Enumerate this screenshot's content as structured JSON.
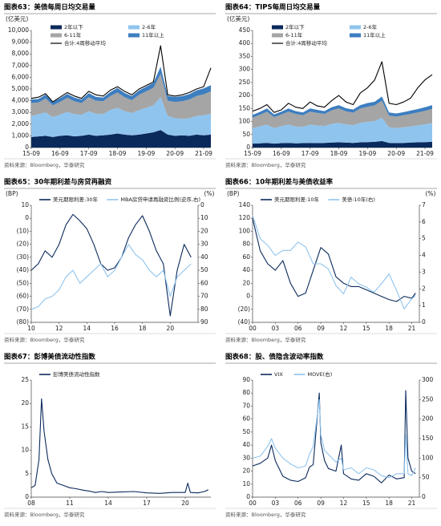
{
  "chart_data": [
    {
      "type": "stacked_area",
      "title": "图表63：美债每周日均交易量",
      "ylabel": "(亿美元)",
      "source": "资料来源：Bloomberg，华泰研究",
      "legend": "upper right",
      "categories": [
        "15-09",
        null,
        null,
        null,
        "16-09",
        null,
        null,
        null,
        "17-09",
        null,
        null,
        null,
        "18-09",
        null,
        null,
        null,
        "19-09",
        null,
        null,
        null,
        "20-09",
        null,
        null,
        null,
        "21-09",
        null
      ],
      "ylim": [
        0,
        10000
      ],
      "yticks": [
        0,
        {
          "value": 1000,
          "label": "1,000"
        },
        {
          "value": 2000,
          "label": "2,000"
        },
        {
          "value": 3000,
          "label": "3,000"
        },
        {
          "value": 4000,
          "label": "4,000"
        },
        {
          "value": 5000,
          "label": "5,000"
        },
        {
          "value": 6000,
          "label": "6,000"
        },
        {
          "value": 7000,
          "label": "7,000"
        },
        {
          "value": 8000,
          "label": "8,000"
        },
        {
          "value": 9000,
          "label": "9,000"
        },
        {
          "value": 10000,
          "label": "10,000"
        }
      ],
      "series": [
        {
          "name": "2年以下",
          "type": "area",
          "color": "#0b2a5c",
          "values": [
            900,
            950,
            1000,
            900,
            1000,
            1050,
            950,
            1000,
            1100,
            1000,
            1050,
            1100,
            1200,
            1100,
            1050,
            1100,
            1200,
            1300,
            1500,
            1100,
            1000,
            1050,
            1000,
            1100,
            1050,
            1100
          ]
        },
        {
          "name": "2-6年",
          "type": "area",
          "color": "#8fc4ee",
          "values": [
            1800,
            1900,
            2000,
            1700,
            1800,
            2000,
            1900,
            1800,
            2000,
            1900,
            1800,
            2100,
            2200,
            2000,
            1900,
            2100,
            2200,
            2300,
            2800,
            1600,
            1500,
            1400,
            1500,
            1600,
            1700,
            1800
          ]
        },
        {
          "name": "6-11年",
          "type": "area",
          "color": "#a5a5a5",
          "values": [
            1100,
            1000,
            1200,
            1000,
            1100,
            1200,
            1100,
            1000,
            1200,
            1100,
            1100,
            1200,
            1300,
            1200,
            1100,
            1300,
            1400,
            1500,
            2000,
            1300,
            1400,
            1500,
            1600,
            1700,
            1800,
            1900
          ]
        },
        {
          "name": "11年以上",
          "type": "area",
          "color": "#3d7ec0",
          "values": [
            300,
            300,
            320,
            300,
            310,
            330,
            320,
            300,
            340,
            330,
            320,
            350,
            380,
            360,
            340,
            380,
            400,
            420,
            600,
            400,
            420,
            440,
            460,
            480,
            500,
            520
          ]
        },
        {
          "name": "合计:4周移动平均",
          "type": "line",
          "color": "#000000",
          "values": [
            4200,
            4300,
            4600,
            3900,
            4300,
            4700,
            4400,
            4200,
            4800,
            4500,
            4400,
            4900,
            5200,
            4800,
            4500,
            5000,
            5300,
            5600,
            8700,
            4500,
            4400,
            4500,
            4700,
            5000,
            5200,
            6800
          ]
        }
      ]
    },
    {
      "type": "stacked_area",
      "title": "图表64：TIPS每周日均交易量",
      "ylabel": "(亿美元)",
      "source": "资料来源：Bloomberg，华泰研究",
      "legend": "upper right",
      "categories": [
        "15-09",
        null,
        null,
        null,
        "16-09",
        null,
        null,
        null,
        "17-09",
        null,
        null,
        null,
        "18-09",
        null,
        null,
        null,
        "19-09",
        null,
        null,
        null,
        "20-09",
        null,
        null,
        null,
        "21-09",
        null
      ],
      "ylim": [
        0,
        450
      ],
      "yticks": [
        0,
        50,
        100,
        150,
        200,
        250,
        300,
        350,
        400,
        450
      ],
      "series": [
        {
          "name": "2年以下",
          "type": "area",
          "color": "#0b2a5c",
          "values": [
            15,
            16,
            18,
            15,
            17,
            18,
            16,
            17,
            18,
            17,
            18,
            19,
            20,
            19,
            18,
            20,
            21,
            22,
            25,
            18,
            17,
            18,
            19,
            20,
            21,
            22
          ]
        },
        {
          "name": "2-6年",
          "type": "area",
          "color": "#8fc4ee",
          "values": [
            60,
            65,
            70,
            60,
            65,
            70,
            65,
            62,
            70,
            68,
            65,
            72,
            75,
            70,
            68,
            75,
            78,
            80,
            90,
            60,
            58,
            60,
            62,
            65,
            68,
            72
          ]
        },
        {
          "name": "6-11年",
          "type": "area",
          "color": "#a5a5a5",
          "values": [
            40,
            45,
            50,
            42,
            45,
            50,
            48,
            45,
            50,
            48,
            46,
            52,
            55,
            50,
            48,
            55,
            58,
            60,
            65,
            45,
            44,
            46,
            48,
            50,
            52,
            55
          ]
        },
        {
          "name": "11年以上",
          "type": "area",
          "color": "#3d7ec0",
          "values": [
            10,
            11,
            12,
            10,
            11,
            12,
            11,
            11,
            12,
            12,
            11,
            12,
            13,
            12,
            12,
            13,
            14,
            14,
            16,
            12,
            12,
            12,
            13,
            13,
            14,
            14
          ]
        },
        {
          "name": "合计:4周移动平均",
          "type": "line",
          "color": "#000000",
          "values": [
            140,
            150,
            165,
            135,
            145,
            170,
            155,
            150,
            175,
            160,
            155,
            180,
            200,
            175,
            165,
            210,
            230,
            260,
            330,
            170,
            165,
            175,
            190,
            230,
            260,
            280
          ]
        }
      ]
    },
    {
      "type": "line",
      "title": "图表65：30年期利差与房贷再融资",
      "ylabel": "(BP)",
      "y2label": "(%)",
      "source": "资料来源：Bloomberg，华泰研究",
      "legend": "top",
      "x": [
        10,
        10.5,
        11,
        11.5,
        12,
        12.5,
        13,
        13.5,
        14,
        14.5,
        15,
        15.5,
        16,
        16.5,
        17,
        17.5,
        18,
        18.5,
        19,
        19.5,
        20,
        20.5,
        21,
        21.5
      ],
      "xlim": [
        10,
        22
      ],
      "xticks": [
        10,
        12,
        14,
        16,
        18,
        20
      ],
      "ylim": [
        -80,
        10
      ],
      "yticks": [
        {
          "value": -80,
          "label": "(80)"
        },
        {
          "value": -70,
          "label": "(70)"
        },
        {
          "value": -60,
          "label": "(60)"
        },
        {
          "value": -50,
          "label": "(50)"
        },
        {
          "value": -40,
          "label": "(40)"
        },
        {
          "value": -30,
          "label": "(30)"
        },
        {
          "value": -20,
          "label": "(20)"
        },
        {
          "value": -10,
          "label": "(10)"
        },
        0,
        10
      ],
      "y2lim": [
        90,
        0
      ],
      "y2ticks": [
        0,
        10,
        20,
        30,
        40,
        50,
        60,
        70,
        80,
        90
      ],
      "series": [
        {
          "name": "美元期限利差:30年",
          "color": "#0b2a5c",
          "values": [
            -40,
            -35,
            -25,
            -30,
            -20,
            -5,
            3,
            -2,
            -8,
            -20,
            -35,
            -40,
            -38,
            -30,
            -15,
            -5,
            2,
            -10,
            -25,
            -35,
            -75,
            -40,
            -20,
            -30
          ]
        },
        {
          "name": "MBA房贷申请再融资比例(逆序,右)",
          "color": "#8fc4ee",
          "axis": "y2",
          "values": [
            80,
            78,
            72,
            70,
            65,
            55,
            50,
            60,
            55,
            50,
            45,
            55,
            50,
            40,
            30,
            38,
            42,
            50,
            55,
            50,
            70,
            55,
            50,
            45
          ]
        }
      ]
    },
    {
      "type": "line",
      "title": "图表66：10年期利差与美债收益率",
      "ylabel": "(BP)",
      "y2label": "(%)",
      "source": "资料来源：Bloomberg，华泰研究",
      "legend": "top",
      "x": [
        0,
        1,
        2,
        3,
        4,
        5,
        6,
        7,
        8,
        9,
        10,
        11,
        12,
        13,
        14,
        15,
        16,
        17,
        18,
        19,
        20,
        21,
        21.5
      ],
      "xlim": [
        0,
        22
      ],
      "xticks": [
        {
          "value": 0,
          "label": "00"
        },
        {
          "value": 3,
          "label": "03"
        },
        {
          "value": 6,
          "label": "06"
        },
        {
          "value": 9,
          "label": "09"
        },
        12,
        15,
        18,
        21
      ],
      "ylim": [
        -40,
        140
      ],
      "yticks": [
        {
          "value": -40,
          "label": "(40)"
        },
        {
          "value": -20,
          "label": "(20)"
        },
        0,
        20,
        40,
        60,
        80,
        100,
        120,
        140
      ],
      "y2lim": [
        0,
        7
      ],
      "y2ticks": [
        0,
        1,
        2,
        3,
        4,
        5,
        6,
        7
      ],
      "series": [
        {
          "name": "美元期限利差:10年",
          "color": "#0b2a5c",
          "values": [
            120,
            70,
            50,
            40,
            55,
            20,
            0,
            5,
            40,
            75,
            65,
            30,
            20,
            15,
            15,
            10,
            5,
            0,
            -5,
            -8,
            0,
            -3,
            5
          ]
        },
        {
          "name": "美债:10年(右)",
          "color": "#8fc4ee",
          "axis": "y2",
          "values": [
            6.4,
            5.0,
            4.6,
            4.0,
            4.3,
            4.3,
            4.8,
            4.5,
            3.5,
            3.5,
            3.2,
            2.2,
            1.7,
            2.7,
            2.3,
            2.1,
            1.8,
            2.3,
            2.9,
            1.9,
            0.8,
            1.4,
            1.6
          ]
        }
      ]
    },
    {
      "type": "line",
      "title": "图表67：彭博美债流动性指数",
      "source": "资料来源：Bloomberg，华泰研究",
      "legend": "top",
      "x": [
        8,
        8.3,
        8.6,
        8.8,
        9,
        9.3,
        9.6,
        10,
        10.5,
        11,
        11.5,
        12,
        12.5,
        13,
        13.5,
        14,
        15,
        16,
        17,
        18,
        19,
        20,
        20.2,
        20.4,
        21,
        21.5,
        21.8
      ],
      "xlim": [
        8,
        22
      ],
      "xticks": [
        {
          "value": 8,
          "label": "08"
        },
        11,
        14,
        17,
        20
      ],
      "ylim": [
        0,
        25
      ],
      "yticks": [
        0,
        5,
        10,
        15,
        20,
        25
      ],
      "series": [
        {
          "name": "彭博美债流动性指数",
          "color": "#0b2a5c",
          "values": [
            2,
            2.5,
            8,
            21,
            14,
            8,
            5,
            3,
            2.5,
            2,
            1.8,
            1.5,
            1.3,
            1.0,
            1.2,
            1.0,
            1.1,
            1.2,
            0.9,
            0.8,
            1.0,
            1.0,
            3.0,
            1.0,
            0.9,
            1.2,
            1.6
          ]
        }
      ]
    },
    {
      "type": "line",
      "title": "图表68：股、债隐含波动率指数",
      "source": "资料来源：Bloomberg，华泰研究",
      "legend": "top",
      "x": [
        0,
        1,
        2,
        2.5,
        3,
        4,
        5,
        6,
        7,
        7.5,
        8,
        8.8,
        9,
        9.5,
        10,
        11,
        11.7,
        12,
        13,
        14,
        15,
        16,
        17,
        18,
        19,
        20,
        20.2,
        20.5,
        21,
        21.5
      ],
      "xlim": [
        0,
        22
      ],
      "xticks": [
        {
          "value": 0,
          "label": "00"
        },
        {
          "value": 3,
          "label": "03"
        },
        {
          "value": 6,
          "label": "06"
        },
        {
          "value": 9,
          "label": "09"
        },
        12,
        15,
        18,
        21
      ],
      "ylim": [
        0,
        90
      ],
      "yticks": [
        0,
        10,
        20,
        30,
        40,
        50,
        60,
        70,
        80,
        90
      ],
      "y2lim": [
        0,
        300
      ],
      "y2ticks": [
        0,
        50,
        100,
        150,
        200,
        250,
        300
      ],
      "series": [
        {
          "name": "VIX",
          "color": "#0b2a5c",
          "values": [
            24,
            26,
            30,
            40,
            28,
            16,
            13,
            12,
            15,
            23,
            25,
            80,
            42,
            28,
            22,
            20,
            40,
            18,
            14,
            13,
            18,
            16,
            11,
            17,
            14,
            15,
            82,
            30,
            20,
            18
          ]
        },
        {
          "name": "MOVE(右)",
          "color": "#8fc4ee",
          "axis": "y2",
          "values": [
            100,
            105,
            130,
            150,
            125,
            100,
            85,
            75,
            80,
            110,
            130,
            250,
            160,
            120,
            110,
            90,
            100,
            70,
            75,
            60,
            75,
            70,
            55,
            50,
            60,
            60,
            160,
            60,
            55,
            75
          ]
        }
      ]
    }
  ]
}
